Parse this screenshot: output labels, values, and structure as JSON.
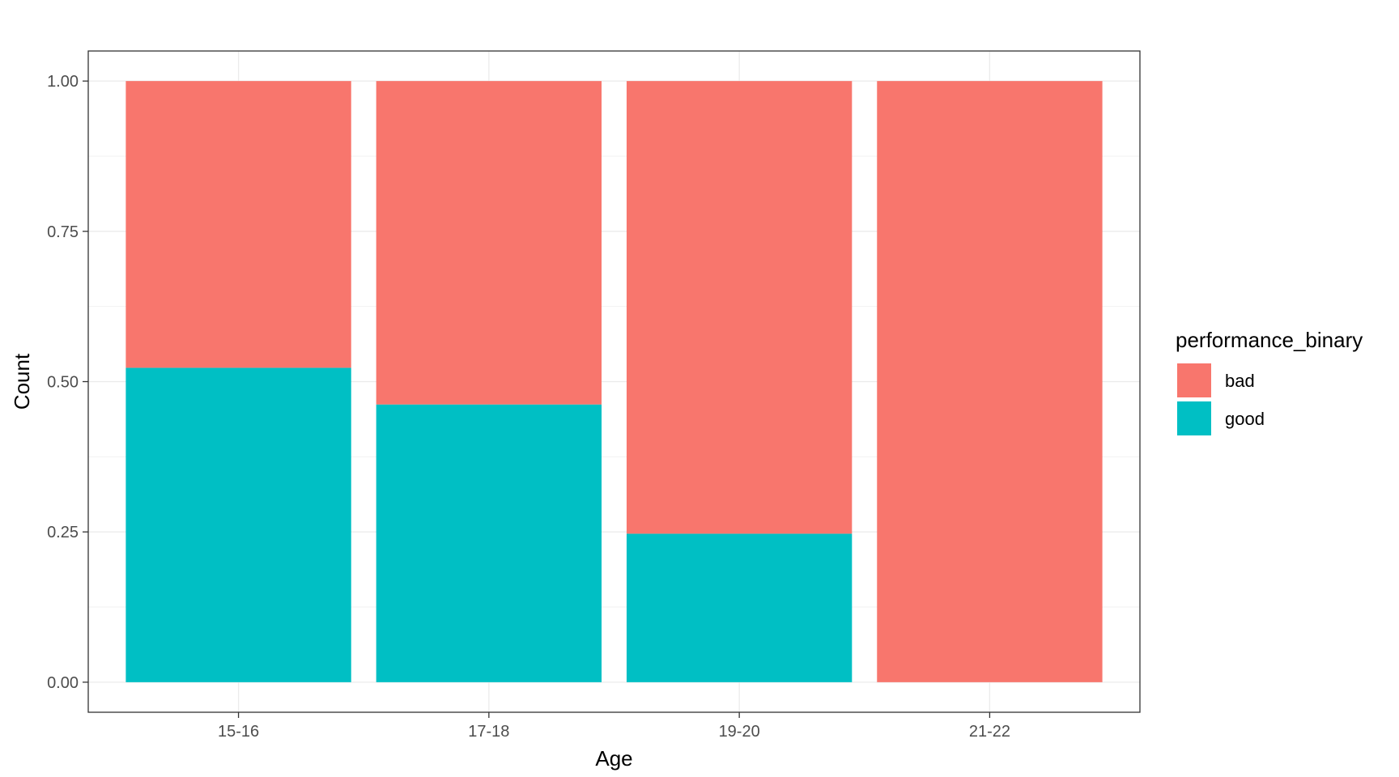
{
  "chart_data": {
    "type": "bar",
    "stacked": true,
    "position": "fill",
    "categories": [
      "15-16",
      "17-18",
      "19-20",
      "21-22"
    ],
    "series": [
      {
        "name": "good",
        "color": "#00BFC4",
        "values": [
          0.523,
          0.462,
          0.247,
          0.0
        ]
      },
      {
        "name": "bad",
        "color": "#F8766D",
        "values": [
          0.477,
          0.538,
          0.753,
          1.0
        ]
      }
    ],
    "xlabel": "Age",
    "ylabel": "Count",
    "ylim": [
      -0.05,
      1.05
    ],
    "yticks": [
      0.0,
      0.25,
      0.5,
      0.75,
      1.0
    ],
    "ytick_labels": [
      "0.00",
      "0.25",
      "0.50",
      "0.75",
      "1.00"
    ],
    "grid": true,
    "legend": {
      "title": "performance_binary",
      "position": "right",
      "entries": [
        {
          "label": "bad",
          "color": "#F8766D"
        },
        {
          "label": "good",
          "color": "#00BFC4"
        }
      ]
    }
  }
}
